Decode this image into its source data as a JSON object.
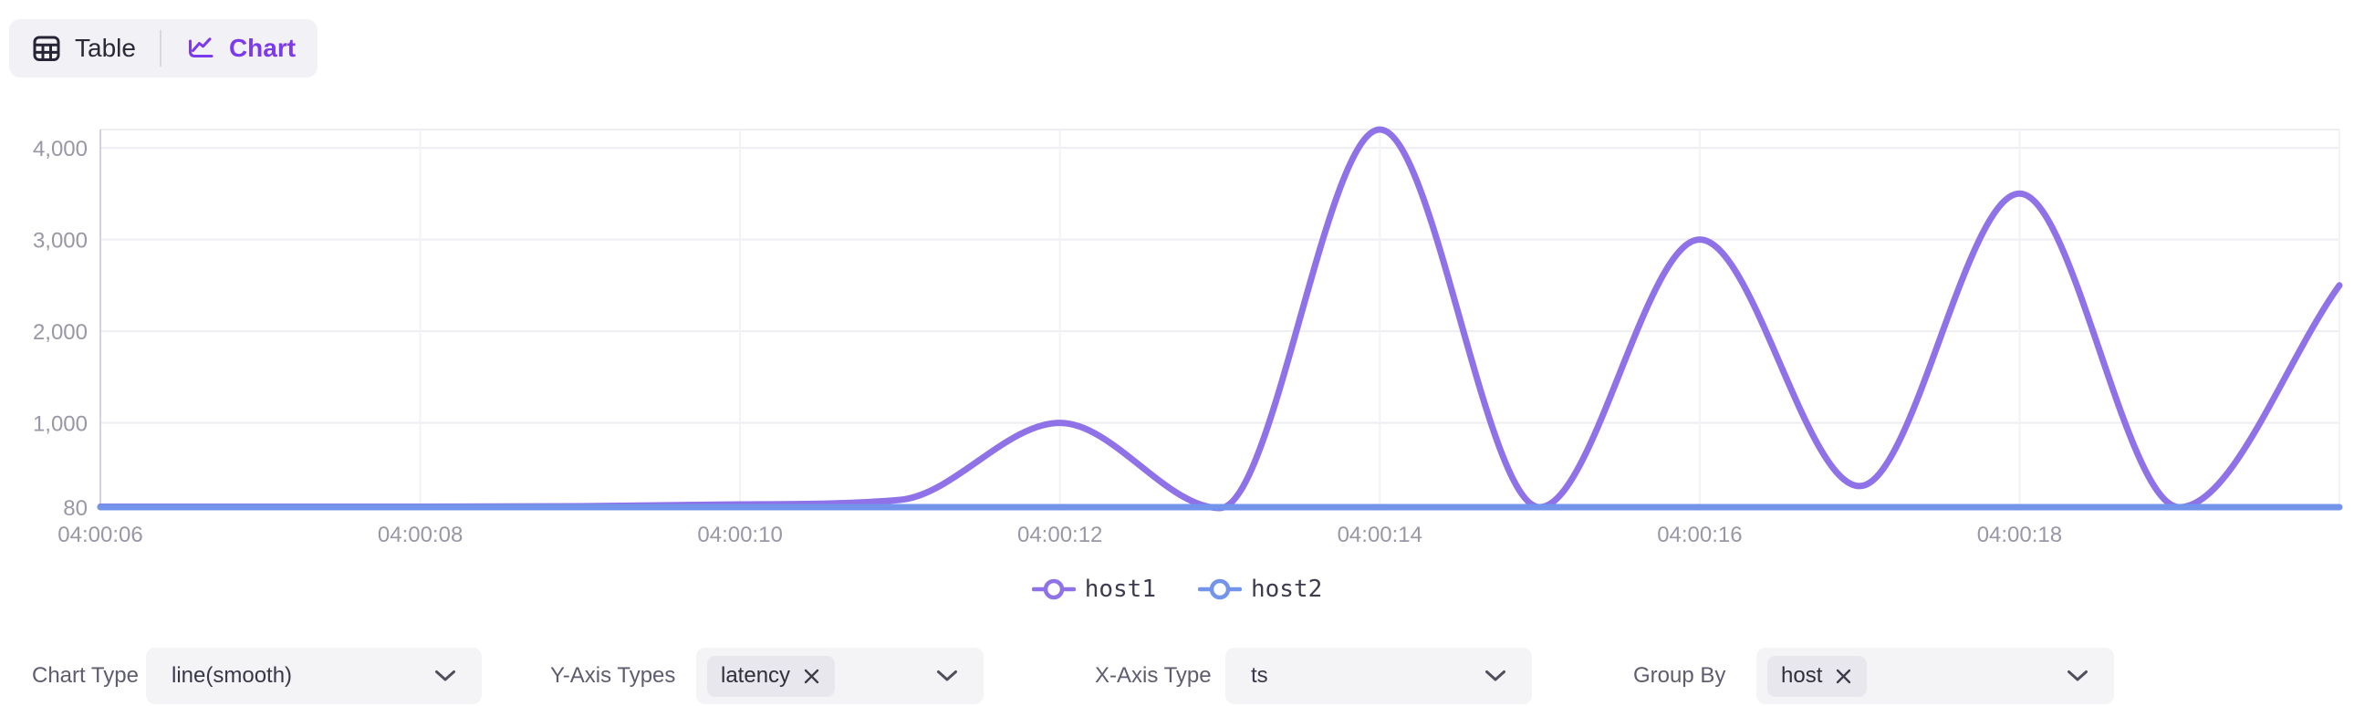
{
  "colors": {
    "accent": "#7c3aed",
    "series_host1": "#8f72e7",
    "series_host2": "#7494ec",
    "axis_text": "#9897a6",
    "grid_line": "#ededf2",
    "grid_line_vertical": "#f2f2f7",
    "axis_line": "#d4d3dd",
    "toggle_bg": "#f2f1f5",
    "select_bg": "#f4f4f7",
    "chip_bg": "#e8e7ed"
  },
  "view_toggle": {
    "items": [
      {
        "id": "table",
        "label": "Table",
        "icon": "table-icon",
        "active": false
      },
      {
        "id": "chart",
        "label": "Chart",
        "icon": "line-chart-icon",
        "active": true
      }
    ]
  },
  "chart_data": {
    "type": "line",
    "smooth": true,
    "grid": true,
    "legend_position": "bottom",
    "x_axis": {
      "field": "ts",
      "tick_labels": [
        "04:00:06",
        "04:00:08",
        "04:00:10",
        "04:00:12",
        "04:00:14",
        "04:00:16",
        "04:00:18"
      ]
    },
    "y_axis": {
      "min": 80,
      "max": 4200,
      "tick_values": [
        80,
        1000,
        2000,
        3000,
        4000
      ],
      "tick_labels": [
        "80",
        "1,000",
        "2,000",
        "3,000",
        "4,000"
      ]
    },
    "timestamps": [
      "04:00:06",
      "04:00:07",
      "04:00:08",
      "04:00:09",
      "04:00:10",
      "04:00:11",
      "04:00:12",
      "04:00:13",
      "04:00:14",
      "04:00:15",
      "04:00:16",
      "04:00:17",
      "04:00:18",
      "04:00:19",
      "04:00:20"
    ],
    "series": [
      {
        "name": "host1",
        "color": "#8f72e7",
        "values": [
          85,
          85,
          85,
          90,
          110,
          160,
          1000,
          70,
          4200,
          80,
          3000,
          310,
          3500,
          80,
          2500
        ]
      },
      {
        "name": "host2",
        "color": "#7494ec",
        "values": [
          80,
          80,
          80,
          80,
          80,
          80,
          80,
          80,
          80,
          80,
          80,
          80,
          80,
          80,
          80
        ]
      }
    ]
  },
  "controls": [
    {
      "label": "Chart Type",
      "type": "select",
      "value": "line(smooth)"
    },
    {
      "label": "Y-Axis Types",
      "type": "multiselect",
      "selected": [
        "latency"
      ]
    },
    {
      "label": "X-Axis Type",
      "type": "select",
      "value": "ts"
    },
    {
      "label": "Group By",
      "type": "multiselect",
      "selected": [
        "host"
      ]
    }
  ]
}
